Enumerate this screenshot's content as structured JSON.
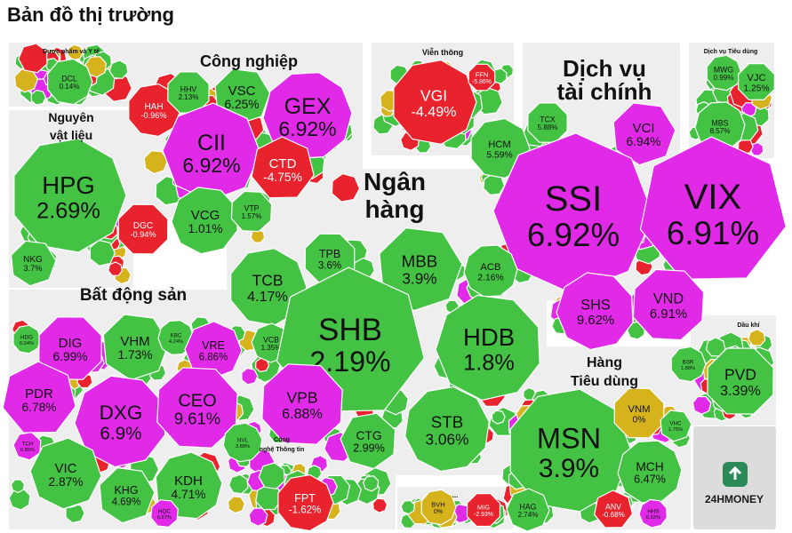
{
  "title": "Bản đồ thị trường",
  "colors": {
    "up": "#44c244",
    "down": "#e8232d",
    "ceiling": "#e12ae8",
    "floor": "#1ec7ff",
    "unchanged": "#d6b21d",
    "sector_bg": "#eeeeee",
    "watermark_bg": "#dcdcdc"
  },
  "brand": {
    "name": "24HMONEY",
    "icon": "upload-arrow-icon"
  },
  "chart_data": {
    "type": "heatmap",
    "title": "Bản đồ thị trường",
    "sectors": [
      {
        "name": "Dược phẩm và Y tế",
        "stocks": [
          {
            "ticker": "DCL",
            "change": "0.14%",
            "status": "up"
          }
        ]
      },
      {
        "name": "Công nghiệp",
        "stocks": [
          {
            "ticker": "HAH",
            "change": "-0.96%",
            "status": "down"
          },
          {
            "ticker": "HHV",
            "change": "2.13%",
            "status": "up"
          },
          {
            "ticker": "VSC",
            "change": "6.25%",
            "status": "up"
          },
          {
            "ticker": "GEX",
            "change": "6.92%",
            "status": "ceiling"
          },
          {
            "ticker": "CII",
            "change": "6.92%",
            "status": "ceiling"
          },
          {
            "ticker": "CTD",
            "change": "-4.75%",
            "status": "down"
          },
          {
            "ticker": "VCG",
            "change": "1.01%",
            "status": "up"
          },
          {
            "ticker": "VTP",
            "change": "1.57%",
            "status": "up"
          }
        ]
      },
      {
        "name": "Viễn thông",
        "stocks": [
          {
            "ticker": "VGI",
            "change": "-4.49%",
            "status": "down"
          },
          {
            "ticker": "FFN",
            "change": "-5.86%",
            "status": "down"
          }
        ]
      },
      {
        "name": "Dịch vụ tài chính",
        "stocks": [
          {
            "ticker": "HCM",
            "change": "5.59%",
            "status": "up"
          },
          {
            "ticker": "TCX",
            "change": "5.88%",
            "status": "up"
          },
          {
            "ticker": "VCI",
            "change": "6.94%",
            "status": "ceiling"
          },
          {
            "ticker": "MBS",
            "change": "8.57%",
            "status": "up"
          },
          {
            "ticker": "SSI",
            "change": "6.92%",
            "status": "ceiling"
          },
          {
            "ticker": "VIX",
            "change": "6.91%",
            "status": "ceiling"
          },
          {
            "ticker": "SHS",
            "change": "9.62%",
            "status": "ceiling"
          },
          {
            "ticker": "VND",
            "change": "6.91%",
            "status": "ceiling"
          }
        ]
      },
      {
        "name": "Dịch vụ Tiêu dùng",
        "stocks": [
          {
            "ticker": "MWG",
            "change": "0.99%",
            "status": "up"
          },
          {
            "ticker": "VJC",
            "change": "1.25%",
            "status": "up"
          }
        ]
      },
      {
        "name": "Nguyên vật liệu",
        "stocks": [
          {
            "ticker": "HPG",
            "change": "2.69%",
            "status": "up"
          },
          {
            "ticker": "DGC",
            "change": "-0.94%",
            "status": "down"
          },
          {
            "ticker": "NKG",
            "change": "3.7%",
            "status": "up"
          }
        ]
      },
      {
        "name": "Ngân hàng",
        "stocks": [
          {
            "ticker": "TCB",
            "change": "4.17%",
            "status": "up"
          },
          {
            "ticker": "TPB",
            "change": "3.6%",
            "status": "up"
          },
          {
            "ticker": "MBB",
            "change": "3.9%",
            "status": "up"
          },
          {
            "ticker": "ACB",
            "change": "2.16%",
            "status": "up"
          },
          {
            "ticker": "VCB",
            "change": "1.35%",
            "status": "up"
          },
          {
            "ticker": "SHB",
            "change": "2.19%",
            "status": "up"
          },
          {
            "ticker": "HDB",
            "change": "1.8%",
            "status": "up"
          },
          {
            "ticker": "VPB",
            "change": "6.88%",
            "status": "ceiling"
          },
          {
            "ticker": "CTG",
            "change": "2.99%",
            "status": "up"
          },
          {
            "ticker": "STB",
            "change": "3.06%",
            "status": "up"
          }
        ]
      },
      {
        "name": "Bất động sản",
        "stocks": [
          {
            "ticker": "HDG",
            "change": "6.04%",
            "status": "up"
          },
          {
            "ticker": "DIG",
            "change": "6.99%",
            "status": "ceiling"
          },
          {
            "ticker": "VHM",
            "change": "1.73%",
            "status": "up"
          },
          {
            "ticker": "KBC",
            "change": "4.24%",
            "status": "up"
          },
          {
            "ticker": "VRE",
            "change": "6.86%",
            "status": "ceiling"
          },
          {
            "ticker": "PDR",
            "change": "6.78%",
            "status": "ceiling"
          },
          {
            "ticker": "DXG",
            "change": "6.9%",
            "status": "ceiling"
          },
          {
            "ticker": "CEO",
            "change": "9.61%",
            "status": "ceiling"
          },
          {
            "ticker": "TCH",
            "change": "6.85%",
            "status": "ceiling"
          },
          {
            "ticker": "NVL",
            "change": "3.88%",
            "status": "up"
          },
          {
            "ticker": "VIC",
            "change": "2.87%",
            "status": "up"
          },
          {
            "ticker": "KHG",
            "change": "4.69%",
            "status": "up"
          },
          {
            "ticker": "KDH",
            "change": "4.71%",
            "status": "up"
          },
          {
            "ticker": "HQC",
            "change": "6.67%",
            "status": "ceiling"
          }
        ]
      },
      {
        "name": "Công nghệ Thông tin",
        "stocks": [
          {
            "ticker": "FPT",
            "change": "-1.62%",
            "status": "down"
          }
        ]
      },
      {
        "name": "...",
        "stocks": [
          {
            "ticker": "BVH",
            "change": "0%",
            "status": "unchanged"
          },
          {
            "ticker": "MIG",
            "change": "-2.93%",
            "status": "down"
          }
        ]
      },
      {
        "name": "Hàng Tiêu dùng",
        "stocks": [
          {
            "ticker": "MSN",
            "change": "3.9%",
            "status": "up"
          },
          {
            "ticker": "VNM",
            "change": "0%",
            "status": "unchanged"
          },
          {
            "ticker": "VHC",
            "change": "1.75%",
            "status": "up"
          },
          {
            "ticker": "MCH",
            "change": "6.47%",
            "status": "up"
          },
          {
            "ticker": "HAG",
            "change": "2.74%",
            "status": "up"
          },
          {
            "ticker": "ANV",
            "change": "-0.68%",
            "status": "down"
          },
          {
            "ticker": "HHS",
            "change": "6.62%",
            "status": "ceiling"
          }
        ]
      },
      {
        "name": "Dầu khí",
        "stocks": [
          {
            "ticker": "BSR",
            "change": "1.88%",
            "status": "up"
          },
          {
            "ticker": "PVD",
            "change": "3.39%",
            "status": "up"
          }
        ]
      }
    ]
  }
}
